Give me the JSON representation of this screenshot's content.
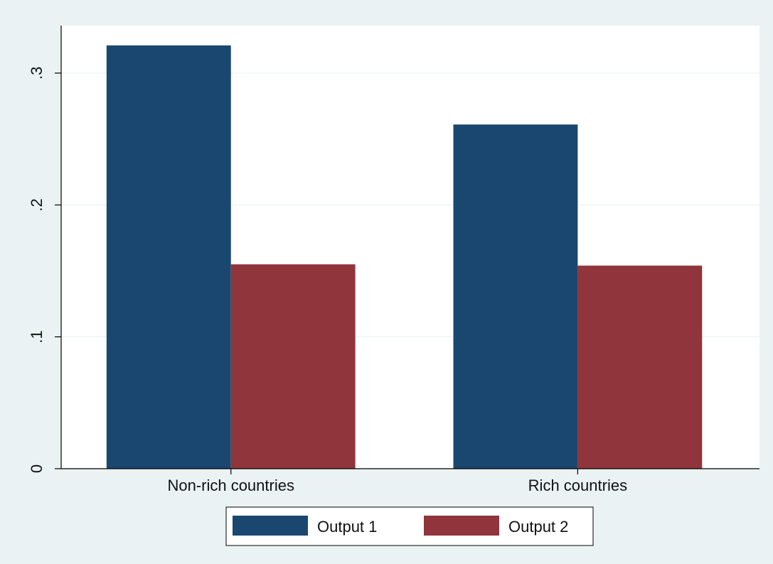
{
  "chart_data": {
    "type": "bar",
    "categories": [
      "Non-rich countries",
      "Rich countries"
    ],
    "series": [
      {
        "name": "Output 1",
        "values": [
          0.321,
          0.261
        ],
        "color": "#1a476f"
      },
      {
        "name": "Output 2",
        "values": [
          0.155,
          0.154
        ],
        "color": "#90353b"
      }
    ],
    "title": "",
    "xlabel": "",
    "ylabel": "",
    "ylim": [
      0,
      0.336
    ],
    "yticks": [
      {
        "value": 0,
        "label": "0"
      },
      {
        "value": 0.1,
        "label": ".1"
      },
      {
        "value": 0.2,
        "label": ".2"
      },
      {
        "value": 0.3,
        "label": ".3"
      }
    ],
    "grid": true,
    "legend_position": "bottom",
    "colors": {
      "outer_background": "#eaf2f3",
      "plot_background": "#ffffff",
      "gridline": "#eaf2f3"
    }
  }
}
